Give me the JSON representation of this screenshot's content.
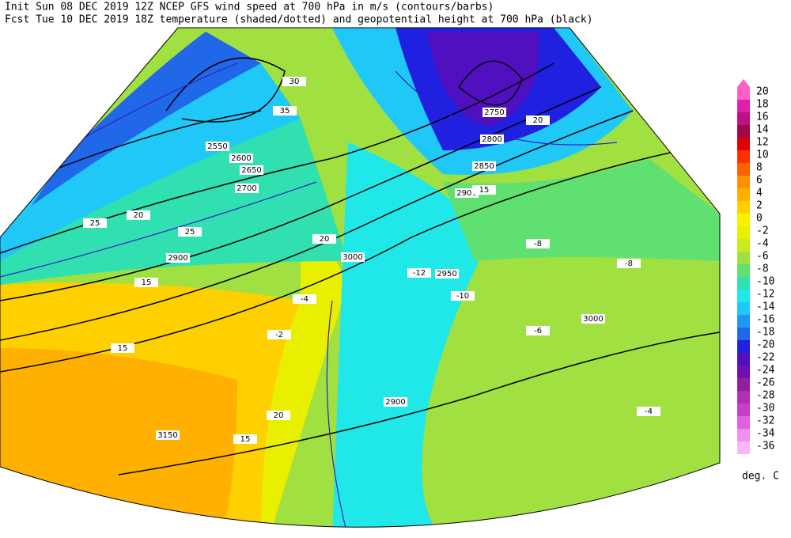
{
  "header": {
    "line1": "Init  Sun 08 DEC 2019 12Z  NCEP GFS wind speed at 700 hPa in m/s (contours/barbs)",
    "line2": "Fcst Tue 10 DEC 2019 18Z  temperature (shaded/dotted) and geopotential height at 700 hPa (black)"
  },
  "legend": {
    "levels": [
      20,
      18,
      16,
      14,
      12,
      10,
      8,
      6,
      4,
      2,
      0,
      -2,
      -4,
      -6,
      -8,
      -10,
      -12,
      -14,
      -16,
      -18,
      -20,
      -22,
      -24,
      -26,
      -28,
      -30,
      -32,
      -34,
      -36
    ],
    "colors": [
      "#ff60c8",
      "#e020a8",
      "#c01088",
      "#a00848",
      "#e00000",
      "#ff3000",
      "#ff6000",
      "#ff9000",
      "#ffb000",
      "#ffd000",
      "#fff000",
      "#e8f000",
      "#c8ec20",
      "#a0e040",
      "#60e070",
      "#30e0b0",
      "#20e8e8",
      "#20c8f8",
      "#2098f0",
      "#2068e8",
      "#2020e0",
      "#5010c0",
      "#7010b0",
      "#9020a0",
      "#b030b0",
      "#c840c8",
      "#e060e0",
      "#f090f0",
      "#f8b8f8"
    ],
    "unit": "deg. C"
  },
  "map": {
    "height_labels": [
      2550,
      2600,
      2650,
      2700,
      2750,
      2800,
      2850,
      2900,
      2950,
      3000,
      3000,
      2900,
      3150,
      2900
    ],
    "wind_labels": [
      20,
      25,
      15,
      30,
      35,
      20,
      15,
      25,
      20,
      15,
      20,
      15
    ],
    "temperature_labels": [
      -12,
      -10,
      -8,
      -4,
      -2,
      -8,
      -4,
      -6
    ]
  }
}
